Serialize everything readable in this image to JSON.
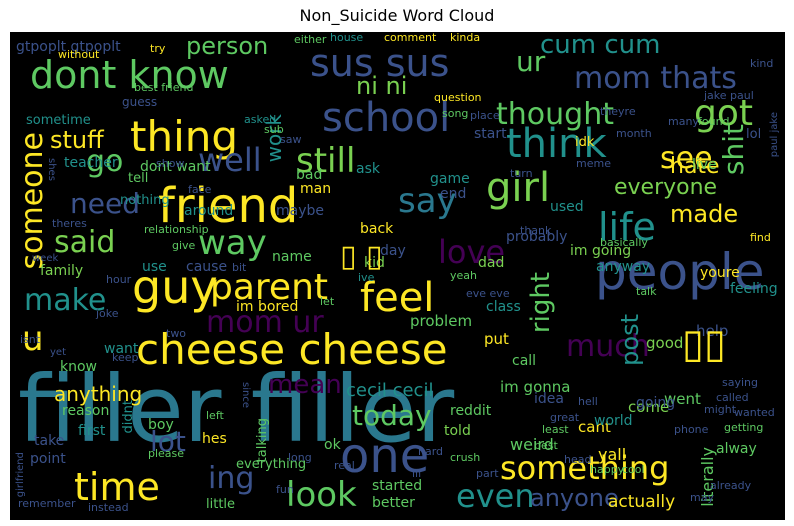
{
  "title": "Non_Suicide Word Cloud",
  "colors": {
    "background": "#000000",
    "palette": [
      "#fde725",
      "#5ec962",
      "#21918c",
      "#3b528b",
      "#440154",
      "#2a788e",
      "#7ad151"
    ]
  },
  "words": {
    "filler_filler": "filler filler",
    "cheese_cheese": "cheese cheese",
    "dont_know": "dont know",
    "friend": "friend",
    "people": "people",
    "guy": "guy",
    "parent": "parent",
    "thing": "thing",
    "school": "school",
    "mom_thats": "mom thats",
    "sus_sus": "sus sus",
    "think": "think",
    "girl": "girl",
    "feel": "feel",
    "something": "something",
    "one": "one",
    "time": "time",
    "look": "look",
    "even": "even",
    "life": "life",
    "love": "love",
    "said": "said",
    "way": "way",
    "make": "make",
    "mom_ur": "mom ur",
    "well": "well",
    "still": "still",
    "say": "say",
    "got": "got",
    "thought": "thought",
    "much": "much",
    "right": "right",
    "see": "see",
    "made": "made",
    "everyone": "everyone",
    "anyone": "anyone",
    "today": "today",
    "mean": "mean",
    "lot": "lot",
    "ing": "ing",
    "u": "u",
    "go": "go",
    "need": "need",
    "stuff": "stuff",
    "someone": "someone",
    "person": "person",
    "ni_ni": "ni ni",
    "cum_cum": "cum cum",
    "ur": "ur",
    "shit": "shit",
    "hate": "hate",
    "post": "post",
    "cecil_cecil": "cecil cecil",
    "work": "work",
    "anything": "anything",
    "literally": "literally",
    "actually": "actually",
    "im_going": "im going",
    "im_gonna": "im gonna",
    "im_bored": "im bored",
    "gtpoplt_gtpoplt": "gtpoplt gtpoplt",
    "boy": "boy",
    "reddit": "reddit",
    "told": "told",
    "weird": "weird",
    "yall": "yall",
    "cant": "cant",
    "went": "went",
    "come": "come",
    "world": "world",
    "probably": "probably",
    "anyway": "anyway",
    "youre": "youre",
    "feeling": "feeling",
    "help": "help",
    "good": "good",
    "put": "put",
    "class": "class",
    "problem": "problem",
    "idea": "idea",
    "call": "call",
    "dad": "dad",
    "kid": "kid",
    "day": "day",
    "name": "name",
    "cause": "cause",
    "use": "use",
    "family": "family",
    "maybe": "maybe",
    "back": "back",
    "year": "year",
    "ask": "ask",
    "game": "game",
    "end": "end",
    "used": "used",
    "live": "live",
    "lol": "lol",
    "jake_paul": "jake paul",
    "paul_jake": "paul jake",
    "idk": "idk",
    "start": "start",
    "teacher": "teacher",
    "tell": "tell",
    "dont_want": "dont want",
    "nothing": "nothing",
    "man": "man",
    "bad": "bad",
    "around": "around",
    "sometime": "sometime",
    "guess": "guess",
    "best_friend": "best friend",
    "without": "without",
    "try": "try",
    "either": "either",
    "house": "house",
    "comment": "comment",
    "kinda": "kinda",
    "question": "question",
    "place": "place",
    "song": "song",
    "asked": "asked",
    "sub": "sub",
    "saw": "saw",
    "month": "month",
    "theyre": "theyre",
    "many": "many",
    "found": "found",
    "kind": "kind",
    "meme": "meme",
    "show": "show",
    "shes": "shes",
    "face": "face",
    "theres": "theres",
    "relationship": "relationship",
    "give": "give",
    "thank": "thank",
    "basically": "basically",
    "find": "find",
    "week": "week",
    "bit": "bit",
    "hour": "hour",
    "ive": "ive",
    "yeah": "yeah",
    "eve_eve": "eve eve",
    "talk": "talk",
    "joke": "joke",
    "two": "two",
    "let": "let",
    "isnt": "isnt",
    "yet": "yet",
    "keep": "keep",
    "want": "want",
    "know": "know",
    "reason": "reason",
    "didnt": "didnt",
    "first": "first",
    "take": "take",
    "point": "point",
    "girlfriend": "girlfriend",
    "remember": "remember",
    "instead": "instead",
    "little": "little",
    "started": "started",
    "better": "better",
    "hes": "hes",
    "left": "left",
    "talking": "talking",
    "please": "please",
    "everything": "everything",
    "fun": "fun",
    "long": "long",
    "real": "real",
    "hard": "hard",
    "ill": "ill",
    "part": "part",
    "crush": "crush",
    "least": "least",
    "great": "great",
    "best": "best",
    "head": "head",
    "happy": "happy",
    "cool": "cool",
    "going": "going",
    "might": "might",
    "phone": "phone",
    "getting": "getting",
    "alway": "alway",
    "called": "called",
    "wanted": "wanted",
    "saying": "saying",
    "already": "already",
    "may": "may",
    "hell": "hell",
    "ok": "ok",
    "since": "since",
    "turn": "turn",
    "glyph_a": "▯ ▯",
    "glyph_b": "▯▯"
  }
}
